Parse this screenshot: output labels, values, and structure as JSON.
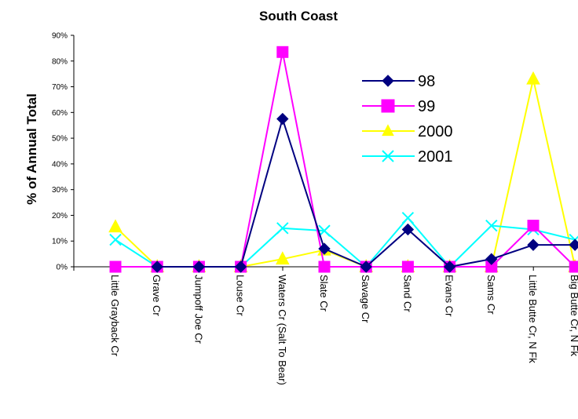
{
  "chart_data": {
    "type": "line",
    "title": "South Coast",
    "xlabel": "",
    "ylabel": "% of Annual Total",
    "ylim": [
      0,
      90
    ],
    "y_ticks": [
      "0%",
      "10%",
      "20%",
      "30%",
      "40%",
      "50%",
      "60%",
      "70%",
      "80%",
      "90%"
    ],
    "categories": [
      "Little Grayback Cr",
      "Grave Cr",
      "Jumpoff Joe Cr",
      "Louse Cr",
      "Waters Cr (Salt To Bear)",
      "Slate Cr",
      "Savage Cr",
      "Sand Cr",
      "Evans Cr",
      "Sams Cr",
      "Little Butte Cr, N Fk",
      "Big Butte Cr, N Fk"
    ],
    "legend_position": "top-right",
    "grid": false,
    "series": [
      {
        "name": "98",
        "color": "#000080",
        "marker": "diamond",
        "values": [
          null,
          0,
          0,
          0,
          57.5,
          7,
          0,
          14.5,
          0,
          3,
          8.5,
          8.5
        ]
      },
      {
        "name": "99",
        "color": "#FF00FF",
        "marker": "square",
        "values": [
          0,
          0,
          0,
          0,
          83.5,
          0,
          0,
          0,
          0,
          0,
          16,
          0
        ]
      },
      {
        "name": "2000",
        "color": "#FFFF00",
        "marker": "triangle",
        "values": [
          15.5,
          0,
          0,
          0,
          3,
          6.5,
          0,
          0,
          0,
          0,
          73,
          0
        ]
      },
      {
        "name": "2001",
        "color": "#00FFFF",
        "marker": "x",
        "values": [
          10.5,
          0,
          0,
          0,
          15,
          14,
          0,
          19,
          0,
          16,
          14.5,
          10.5
        ]
      }
    ]
  }
}
